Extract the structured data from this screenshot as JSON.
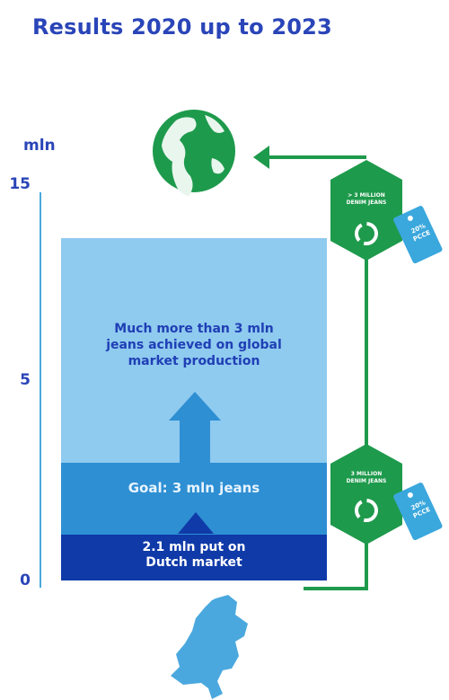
{
  "title": "Results 2020 up to 2023",
  "chart_data": {
    "type": "bar",
    "unit_label": "mln",
    "y_ticks": [
      "15",
      "5",
      "0"
    ],
    "ylim": [
      0,
      15
    ],
    "layers": [
      {
        "name": "2.1 mln put on Dutch market",
        "value": 2.1,
        "color": "#0f3aa8"
      },
      {
        "name": "Goal: 3 mln jeans",
        "value": 3,
        "color": "#2e8fd3"
      },
      {
        "name": "Much more than 3 mln jeans achieved on global market production",
        "value": 12,
        "color": "#8fcaef"
      }
    ]
  },
  "labels": {
    "dutch_line1": "2.1 mln put on",
    "dutch_line2": "Dutch market",
    "goal": "Goal: 3 mln jeans",
    "global_line1": "Much more than 3 mln",
    "global_line2": "jeans achieved on global",
    "global_line3": "market production"
  },
  "hexagons": {
    "top": {
      "line1": "> 3 MILLION",
      "line2": "DENIM JEANS",
      "tag_line1": "20%",
      "tag_line2": "PCCE"
    },
    "bottom": {
      "line1": "3 MILLION",
      "line2": "DENIM JEANS",
      "tag_line1": "20%",
      "tag_line2": "PCCE"
    }
  },
  "colors": {
    "title_blue": "#2a45b8",
    "dark_blue": "#0f3aa8",
    "mid_blue": "#2e8fd3",
    "light_blue": "#8fcaef",
    "green": "#1e9a4c",
    "tag_blue": "#3aa7dd"
  },
  "icons": [
    "globe-icon",
    "netherlands-map-icon",
    "recycle-icon",
    "price-tag-icon",
    "arrow-up-icon"
  ]
}
